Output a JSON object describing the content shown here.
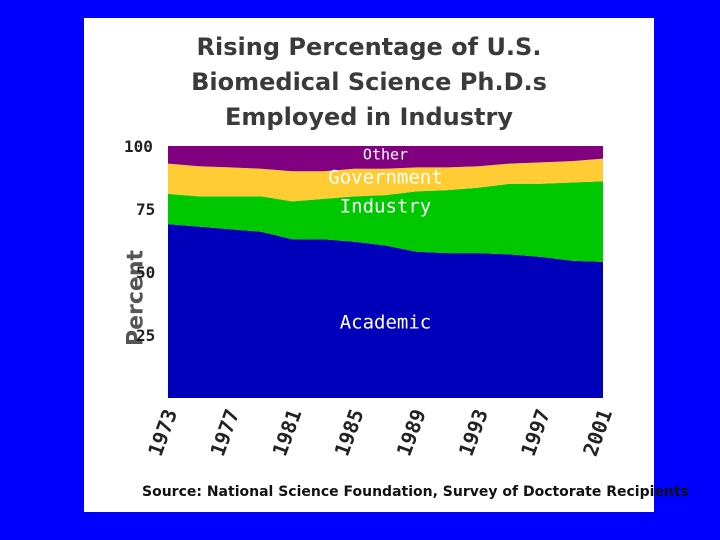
{
  "chart_data": {
    "type": "area",
    "stacked": true,
    "title_lines": [
      "Rising Percentage of U.S.",
      "Biomedical Science Ph.D.s",
      "Employed in Industry"
    ],
    "ylabel": "Percent",
    "source": "Source: National Science Foundation, Survey of Doctorate Recipients",
    "ylim": [
      0,
      100
    ],
    "yticks": [
      100,
      75,
      50,
      25
    ],
    "x": [
      1973,
      1975,
      1977,
      1979,
      1981,
      1983,
      1985,
      1987,
      1989,
      1991,
      1993,
      1995,
      1997,
      1999,
      2001
    ],
    "xtick_labels": [
      "1973",
      "1977",
      "1981",
      "1985",
      "1989",
      "1993",
      "1997",
      "2001"
    ],
    "series": [
      {
        "name": "Academic",
        "color": "#0000bb",
        "values": [
          69,
          68,
          67,
          66,
          63,
          63,
          62,
          60.5,
          58,
          57.5,
          57.5,
          57,
          56,
          54.5,
          54
        ]
      },
      {
        "name": "Industry",
        "color": "#00c800",
        "values": [
          12,
          12,
          13,
          14,
          15,
          16,
          18,
          20,
          24,
          25,
          26,
          28,
          29,
          31,
          32
        ]
      },
      {
        "name": "Government",
        "color": "#ffcc33",
        "values": [
          12,
          12,
          11.5,
          11,
          12,
          11,
          11,
          10.5,
          9.5,
          9,
          8.5,
          8,
          8.5,
          8.5,
          9
        ]
      },
      {
        "name": "Other",
        "color": "#800080",
        "values": [
          7,
          8,
          8.5,
          9,
          10,
          10,
          9,
          9,
          8.5,
          8.5,
          8,
          7,
          6.5,
          6,
          5
        ]
      }
    ]
  }
}
